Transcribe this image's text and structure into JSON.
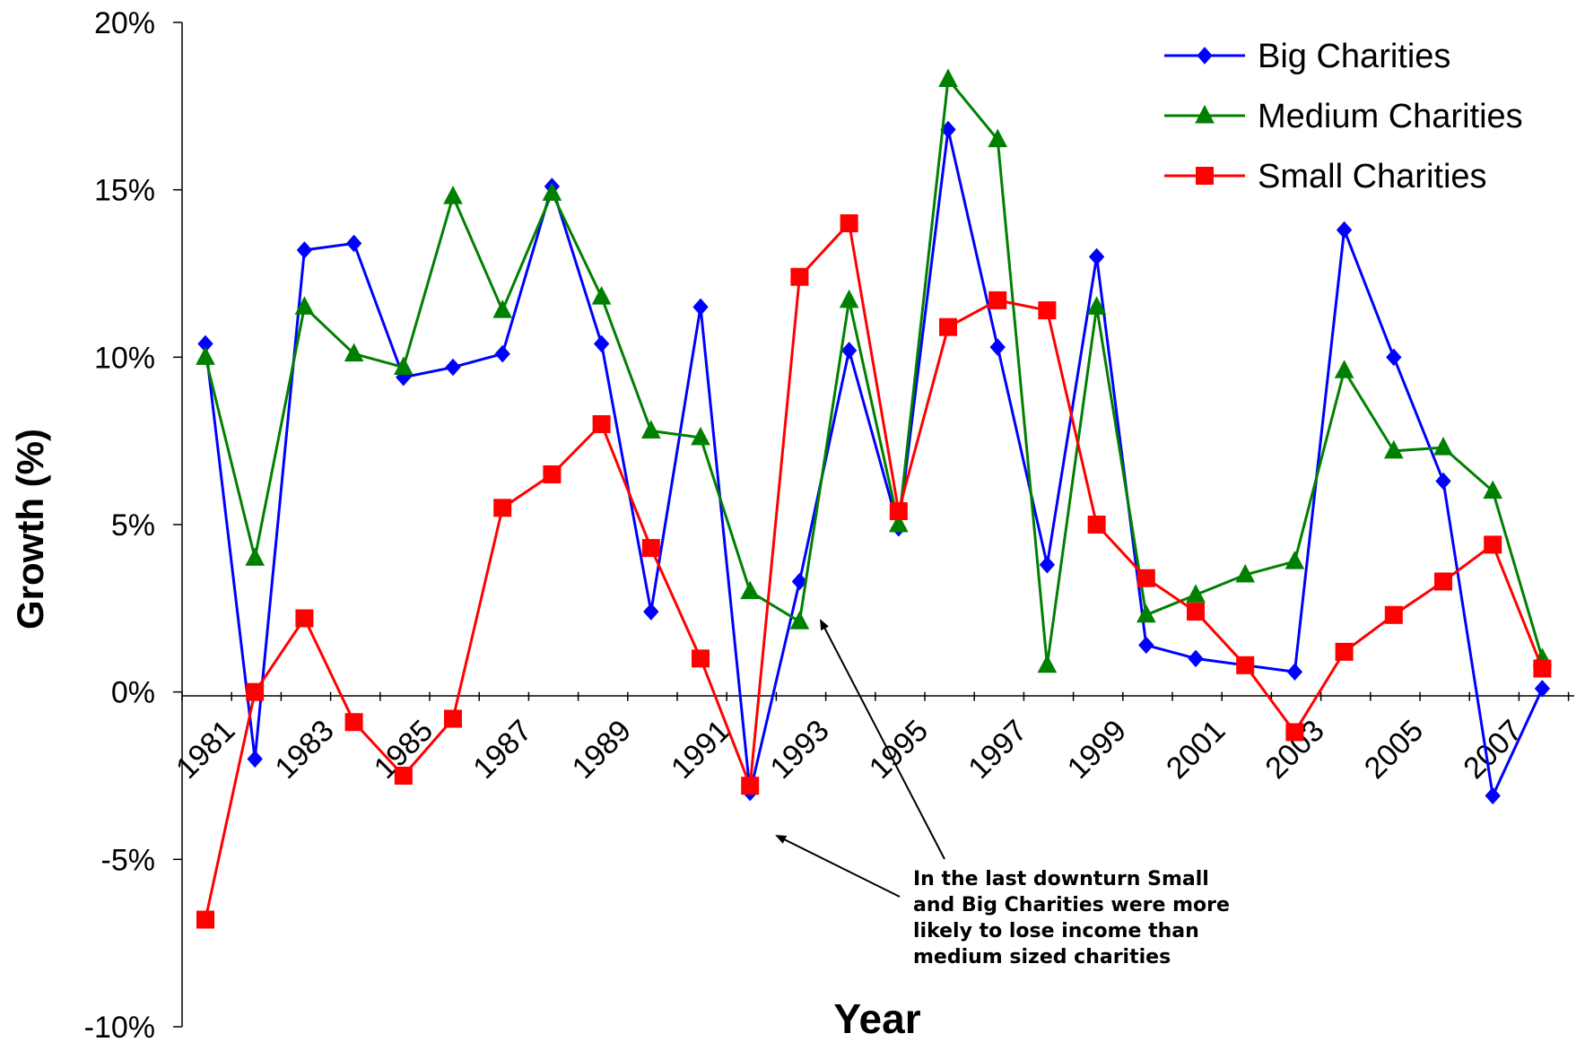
{
  "chart_data": {
    "type": "line",
    "title": "",
    "xlabel": "Year",
    "ylabel": "Growth (%)",
    "ylim": [
      -10,
      20
    ],
    "yticks": [
      "20%",
      "15%",
      "10%",
      "5%",
      "0%",
      "-5%",
      "-10%"
    ],
    "xtick_labels": [
      "1981",
      "1983",
      "1985",
      "1987",
      "1989",
      "1991",
      "1993",
      "1995",
      "1997",
      "1999",
      "2001",
      "2003",
      "2005",
      "2007"
    ],
    "x": [
      1981,
      1982,
      1983,
      1984,
      1985,
      1986,
      1987,
      1988,
      1989,
      1990,
      1991,
      1992,
      1993,
      1994,
      1995,
      1996,
      1997,
      1998,
      1999,
      2000,
      2001,
      2002,
      2003,
      2004,
      2005,
      2006,
      2007,
      2008
    ],
    "grid": false,
    "legend_position": "top-right",
    "series": [
      {
        "name": "Big Charities",
        "color": "#0000ff",
        "marker": "diamond",
        "values": [
          10.4,
          -2.0,
          13.2,
          13.4,
          9.4,
          9.7,
          10.1,
          15.1,
          10.4,
          2.4,
          11.5,
          -3.0,
          3.3,
          10.2,
          4.9,
          16.8,
          10.3,
          3.8,
          13.0,
          1.4,
          1.0,
          0.8,
          0.6,
          13.8,
          10.0,
          6.3,
          -3.1,
          0.1
        ]
      },
      {
        "name": "Medium Charities",
        "color": "#008000",
        "marker": "triangle",
        "values": [
          10.0,
          4.0,
          11.5,
          10.1,
          9.7,
          14.8,
          11.4,
          14.9,
          11.8,
          7.8,
          7.6,
          3.0,
          2.1,
          11.7,
          5.0,
          18.3,
          16.5,
          0.8,
          11.5,
          2.3,
          2.9,
          3.5,
          3.9,
          9.6,
          7.2,
          7.3,
          6.0,
          1.0
        ]
      },
      {
        "name": "Small Charities",
        "color": "#ff0000",
        "marker": "square",
        "values": [
          -6.8,
          0.0,
          2.2,
          -0.9,
          -2.5,
          -0.8,
          5.5,
          6.5,
          8.0,
          4.3,
          1.0,
          -2.8,
          12.4,
          14.0,
          5.4,
          10.9,
          11.7,
          11.4,
          5.0,
          3.4,
          2.4,
          0.8,
          -1.2,
          1.2,
          2.3,
          3.3,
          4.4,
          0.7
        ]
      }
    ],
    "annotations": [
      {
        "lines": [
          "In the last downturn Small",
          "and Big Charities were more",
          "likely to lose income than",
          "medium sized charities"
        ]
      }
    ]
  }
}
